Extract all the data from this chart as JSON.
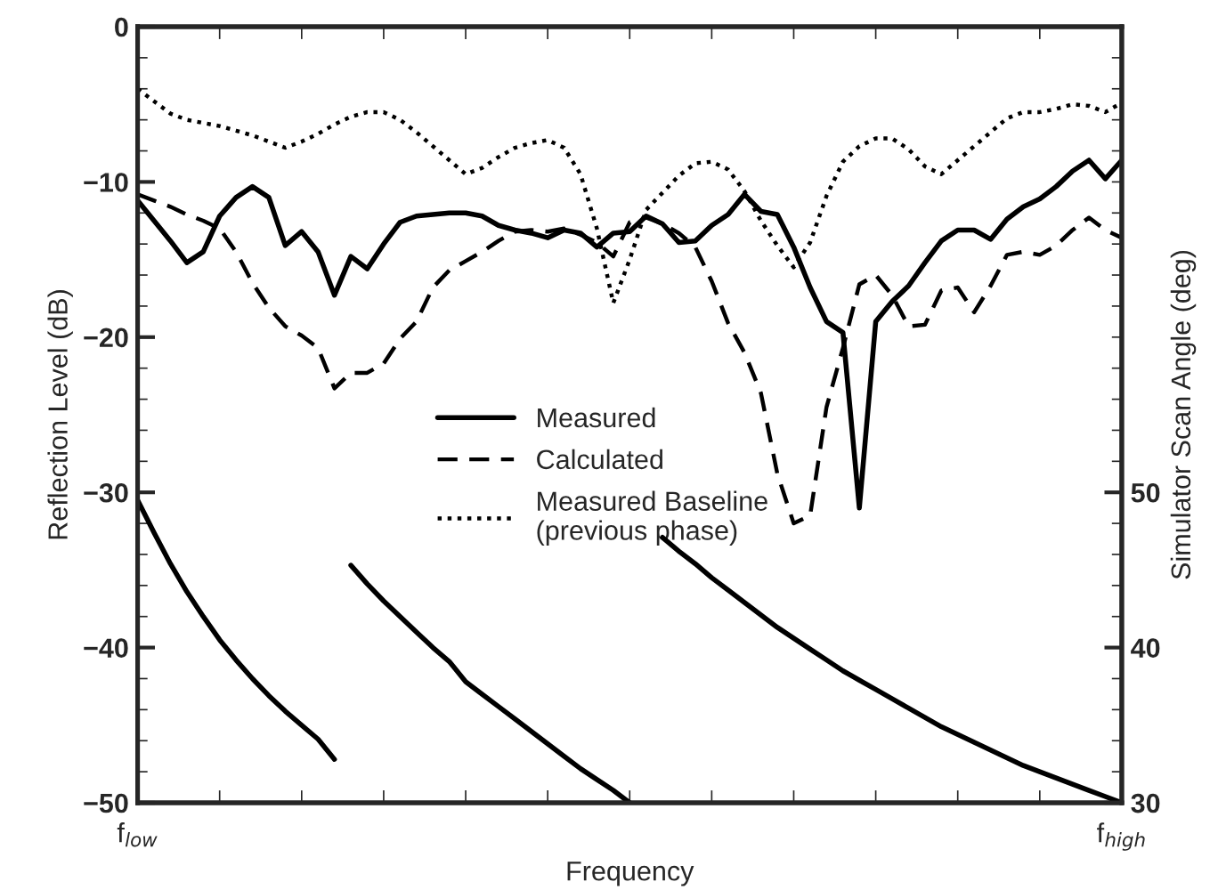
{
  "chart_data": {
    "type": "line",
    "xlabel": "Frequency",
    "ylabel": "Reflection Level (dB)",
    "y2label": "Simulator Scan Angle (deg)",
    "categories": [
      "f$_{low}$",
      null,
      null,
      null,
      null,
      null,
      null,
      null,
      null,
      null,
      null,
      null,
      null,
      null,
      null,
      null,
      null,
      null,
      null,
      null,
      null,
      null,
      null,
      null,
      null,
      null,
      null,
      null,
      null,
      null,
      null,
      null,
      null,
      null,
      null,
      null,
      null,
      null,
      null,
      null,
      null,
      null,
      null,
      null,
      null,
      null,
      null,
      null,
      null,
      null,
      null,
      null,
      null,
      null,
      null,
      null,
      null,
      null,
      null,
      null,
      "f$_{high}$"
    ],
    "ylim": [
      -50,
      0
    ],
    "yticks": [
      -50,
      -40,
      -30,
      -20,
      -10,
      0
    ],
    "y2lim": [
      30,
      80
    ],
    "y2ticks": [
      30,
      40,
      50
    ],
    "legend": "center",
    "series": [
      {
        "name": "Measured",
        "color": "#000000",
        "line_style": "solid",
        "values": [
          -11.2,
          -12.5,
          -13.8,
          -15.2,
          -14.5,
          -12.2,
          -11.0,
          -10.3,
          -11.0,
          -14.1,
          -13.2,
          -14.5,
          -17.3,
          -14.8,
          -15.6,
          -14.0,
          -12.6,
          -12.2,
          -12.1,
          -12.0,
          -12.0,
          -12.2,
          -12.8,
          -13.1,
          -13.3,
          -13.6,
          -13.1,
          -13.3,
          -14.2,
          -13.3,
          -13.2,
          -12.2,
          -12.7,
          -13.9,
          -13.8,
          -12.8,
          -12.1,
          -10.8,
          -11.9,
          -12.1,
          -14.2,
          -16.8,
          -19.0,
          -19.7,
          -31.0,
          -19.0,
          -17.7,
          -16.7,
          -15.2,
          -13.8,
          -13.1,
          -13.1,
          -13.7,
          -12.4,
          -11.6,
          -11.1,
          -10.3,
          -9.3,
          -8.6,
          -9.8,
          -8.6
        ]
      },
      {
        "name": "Calculated",
        "color": "#000000",
        "line_style": "dashed",
        "values": [
          -10.8,
          -11.2,
          -11.6,
          -12.1,
          -12.5,
          -13.0,
          -14.5,
          -16.5,
          -18.1,
          -19.3,
          -19.9,
          -20.7,
          -23.3,
          -22.3,
          -22.3,
          -21.7,
          -20.1,
          -19.0,
          -16.8,
          -15.7,
          -15.1,
          -14.5,
          -13.8,
          -13.2,
          -13.1,
          -13.2,
          -13.0,
          -13.4,
          -13.9,
          -14.8,
          -12.6,
          -12.3,
          -12.7,
          -13.3,
          -14.2,
          -16.4,
          -19.1,
          -21.0,
          -23.6,
          -28.8,
          -32.0,
          -31.5,
          -24.5,
          -20.7,
          -16.6,
          -16.0,
          -17.3,
          -19.3,
          -19.2,
          -17.0,
          -16.8,
          -18.4,
          -16.7,
          -14.7,
          -14.5,
          -14.7,
          -14.1,
          -13.1,
          -12.3,
          -13.1,
          -13.6
        ]
      },
      {
        "name": "Measured Baseline\n(previous phase)",
        "color": "#000000",
        "line_style": "dotted",
        "values": [
          -4.0,
          -4.8,
          -5.6,
          -6.0,
          -6.2,
          -6.4,
          -6.7,
          -7.0,
          -7.4,
          -7.8,
          -7.4,
          -6.9,
          -6.3,
          -5.8,
          -5.5,
          -5.5,
          -6.0,
          -6.8,
          -7.7,
          -8.6,
          -9.5,
          -9.1,
          -8.4,
          -7.8,
          -7.5,
          -7.3,
          -7.8,
          -9.5,
          -13.0,
          -17.8,
          -15.0,
          -11.8,
          -10.7,
          -9.6,
          -8.8,
          -8.7,
          -9.2,
          -10.6,
          -12.5,
          -14.1,
          -15.5,
          -13.9,
          -10.9,
          -8.7,
          -7.7,
          -7.2,
          -7.2,
          -7.9,
          -9.0,
          -9.5,
          -8.6,
          -7.7,
          -6.8,
          -5.9,
          -5.5,
          -5.5,
          -5.3,
          -5.0,
          -5.1,
          -5.5,
          -4.9
        ]
      },
      {
        "color": "#000000",
        "line_style": "solid",
        "axis": "y2",
        "values": [
          49.5,
          47.4,
          45.4,
          43.6,
          42.0,
          40.5,
          39.2,
          38.0,
          36.9,
          35.9,
          35.0,
          34.1,
          32.8,
          null,
          null,
          null,
          null,
          null,
          null,
          null,
          null,
          null,
          null,
          null,
          null,
          null,
          null,
          null,
          null,
          null,
          null,
          null,
          null,
          null,
          null,
          null,
          null,
          null,
          null,
          null,
          null,
          null,
          null,
          null,
          null,
          null,
          null,
          null,
          null,
          null,
          null,
          null,
          null,
          null,
          null,
          null,
          null,
          null,
          null,
          null,
          null
        ]
      },
      {
        "color": "#000000",
        "line_style": "solid",
        "axis": "y2",
        "values": [
          null,
          null,
          null,
          null,
          null,
          null,
          null,
          null,
          null,
          null,
          null,
          null,
          null,
          45.3,
          44.1,
          43.0,
          42.0,
          41.0,
          40.0,
          39.1,
          37.8,
          37.0,
          36.2,
          35.4,
          34.6,
          33.8,
          33.0,
          32.2,
          31.5,
          30.8,
          30.0,
          null,
          null,
          null,
          null,
          null,
          null,
          null,
          null,
          null,
          null,
          null,
          null,
          null,
          null,
          null,
          null,
          null,
          null,
          null,
          null,
          null,
          null,
          null,
          null,
          null,
          null,
          null,
          null,
          null,
          null
        ]
      },
      {
        "color": "#000000",
        "line_style": "solid",
        "axis": "y2",
        "values": [
          null,
          null,
          null,
          null,
          null,
          null,
          null,
          null,
          null,
          null,
          null,
          null,
          null,
          null,
          null,
          null,
          null,
          null,
          null,
          null,
          null,
          null,
          null,
          null,
          null,
          null,
          null,
          null,
          null,
          null,
          null,
          null,
          47.1,
          46.2,
          45.4,
          44.5,
          43.7,
          42.9,
          42.1,
          41.3,
          40.6,
          39.9,
          39.2,
          38.5,
          37.9,
          37.3,
          36.7,
          36.1,
          35.5,
          34.9,
          34.4,
          33.9,
          33.4,
          32.9,
          32.4,
          32.0,
          31.6,
          31.2,
          30.8,
          30.4,
          30.0
        ]
      }
    ]
  }
}
